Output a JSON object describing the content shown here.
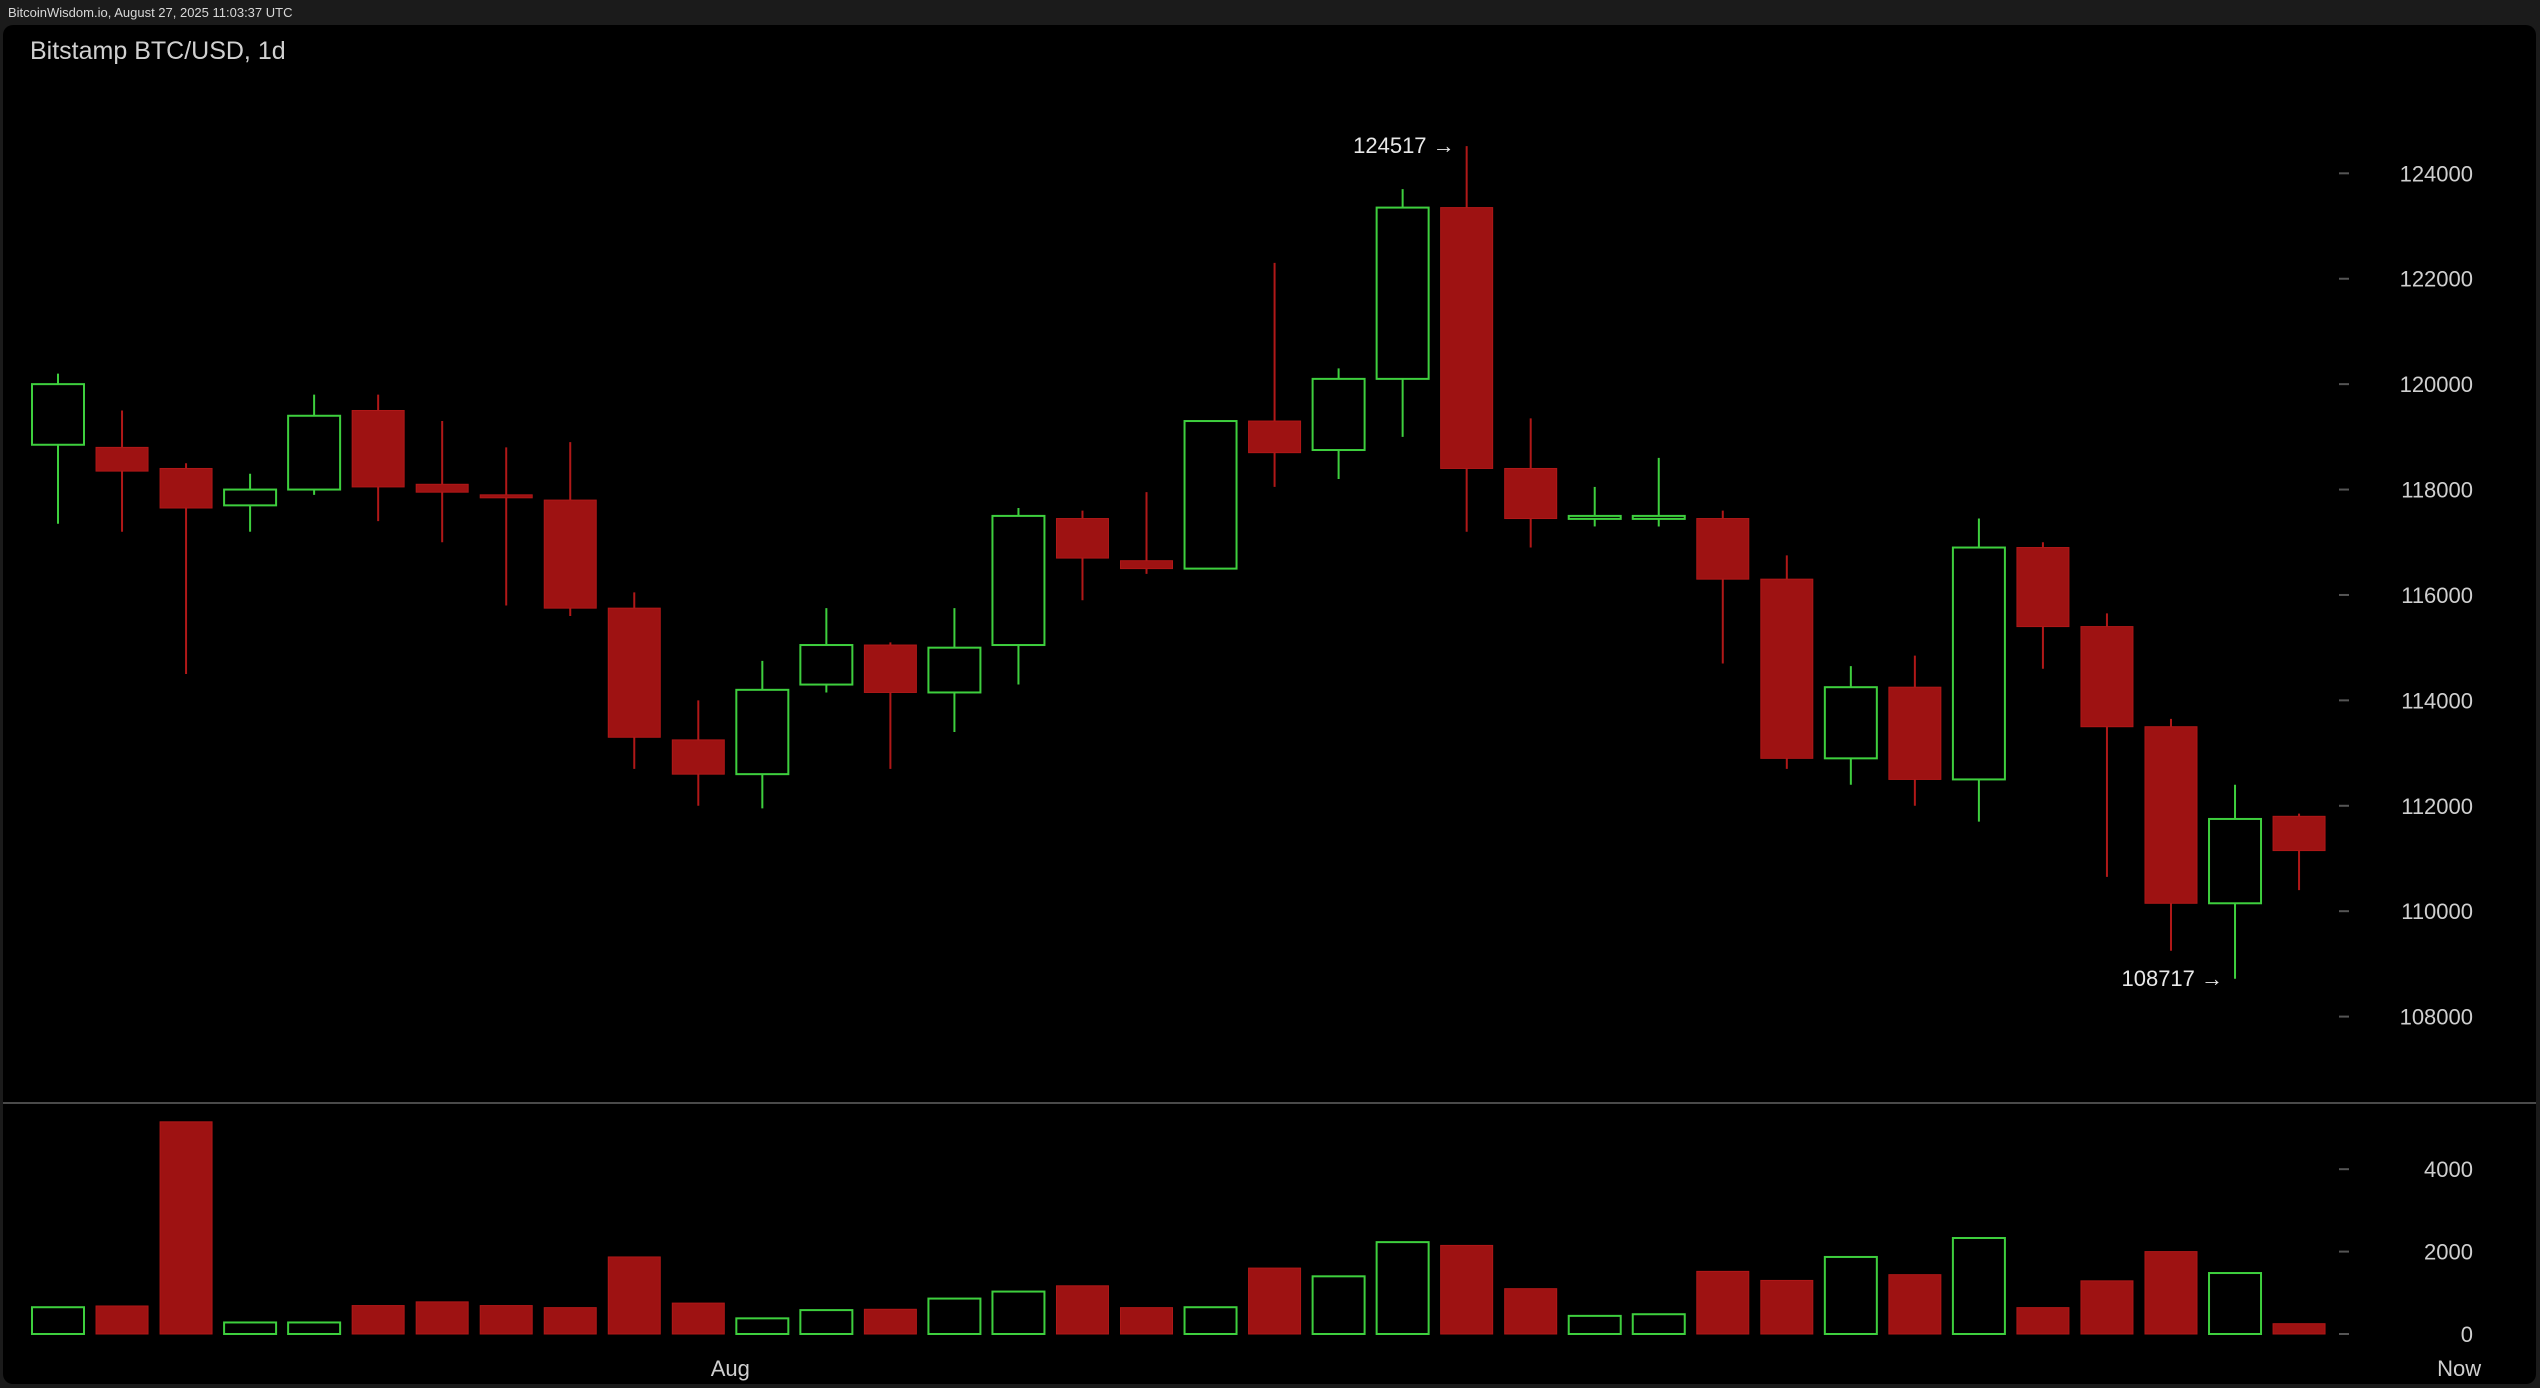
{
  "header": {
    "watermark": "BitcoinWisdom.io, August 27, 2025 11:03:37 UTC",
    "title": "Bitstamp BTC/USD, 1d"
  },
  "chart_data": {
    "type": "candlestick",
    "title": "Bitstamp BTC/USD, 1d",
    "exchange": "Bitstamp",
    "pair": "BTC/USD",
    "interval": "1d",
    "colors": {
      "up": "#3ecf3e",
      "down": "#9e1212",
      "background": "#000000",
      "text": "#cfcfcf",
      "grid_tick": "#555555"
    },
    "price_axis": {
      "ticks": [
        108000,
        110000,
        112000,
        114000,
        116000,
        118000,
        120000,
        122000,
        124000
      ],
      "tick_labels": [
        "108000",
        "110000",
        "112000",
        "114000",
        "116000",
        "118000",
        "120000",
        "122000",
        "124000"
      ],
      "range": [
        106000,
        125600
      ]
    },
    "volume_axis": {
      "ticks": [
        0,
        2000,
        4000
      ],
      "tick_labels": [
        "0",
        "2000",
        "4000"
      ],
      "range": [
        0,
        5600
      ]
    },
    "x_axis": {
      "labels": [
        {
          "text": "Aug",
          "index": 10.5
        },
        {
          "text": "Now",
          "index": 37.5
        }
      ]
    },
    "annotations": [
      {
        "text": "124517 →",
        "value": 124517,
        "candle_index": 22,
        "type": "high"
      },
      {
        "text": "108717 →",
        "value": 108717,
        "candle_index": 34,
        "type": "low"
      }
    ],
    "candles": [
      {
        "open": 118850,
        "high": 120200,
        "low": 117350,
        "close": 120000,
        "volume": 650
      },
      {
        "open": 118800,
        "high": 119500,
        "low": 117200,
        "close": 118350,
        "volume": 680
      },
      {
        "open": 118400,
        "high": 118500,
        "low": 114500,
        "close": 117650,
        "volume": 5150
      },
      {
        "open": 117700,
        "high": 118300,
        "low": 117200,
        "close": 118000,
        "volume": 280
      },
      {
        "open": 118000,
        "high": 119800,
        "low": 117900,
        "close": 119400,
        "volume": 280
      },
      {
        "open": 119500,
        "high": 119800,
        "low": 117400,
        "close": 118050,
        "volume": 690
      },
      {
        "open": 118100,
        "high": 119300,
        "low": 117000,
        "close": 117950,
        "volume": 780
      },
      {
        "open": 117900,
        "high": 118800,
        "low": 115800,
        "close": 117850,
        "volume": 690
      },
      {
        "open": 117800,
        "high": 118900,
        "low": 115600,
        "close": 115750,
        "volume": 640
      },
      {
        "open": 115750,
        "high": 116050,
        "low": 112700,
        "close": 113300,
        "volume": 1870
      },
      {
        "open": 113250,
        "high": 114000,
        "low": 112000,
        "close": 112600,
        "volume": 750
      },
      {
        "open": 112600,
        "high": 114750,
        "low": 111950,
        "close": 114200,
        "volume": 380
      },
      {
        "open": 114300,
        "high": 115750,
        "low": 114150,
        "close": 115050,
        "volume": 580
      },
      {
        "open": 115050,
        "high": 115100,
        "low": 112700,
        "close": 114150,
        "volume": 600
      },
      {
        "open": 114150,
        "high": 115750,
        "low": 113400,
        "close": 115000,
        "volume": 860
      },
      {
        "open": 115050,
        "high": 117650,
        "low": 114300,
        "close": 117500,
        "volume": 1030
      },
      {
        "open": 117450,
        "high": 117600,
        "low": 115900,
        "close": 116700,
        "volume": 1170
      },
      {
        "open": 116650,
        "high": 117950,
        "low": 116400,
        "close": 116500,
        "volume": 640
      },
      {
        "open": 116500,
        "high": 119300,
        "low": 116500,
        "close": 119300,
        "volume": 650
      },
      {
        "open": 119300,
        "high": 122300,
        "low": 118050,
        "close": 118700,
        "volume": 1600
      },
      {
        "open": 118750,
        "high": 120300,
        "low": 118200,
        "close": 120100,
        "volume": 1400
      },
      {
        "open": 120100,
        "high": 123700,
        "low": 119000,
        "close": 123350,
        "volume": 2230
      },
      {
        "open": 123350,
        "high": 124517,
        "low": 117200,
        "close": 118400,
        "volume": 2150
      },
      {
        "open": 118400,
        "high": 119350,
        "low": 116900,
        "close": 117450,
        "volume": 1100
      },
      {
        "open": 117450,
        "high": 118050,
        "low": 117300,
        "close": 117500,
        "volume": 440
      },
      {
        "open": 117450,
        "high": 118600,
        "low": 117300,
        "close": 117500,
        "volume": 480
      },
      {
        "open": 117450,
        "high": 117600,
        "low": 114700,
        "close": 116300,
        "volume": 1520
      },
      {
        "open": 116300,
        "high": 116750,
        "low": 112700,
        "close": 112900,
        "volume": 1300
      },
      {
        "open": 112900,
        "high": 114650,
        "low": 112400,
        "close": 114250,
        "volume": 1870
      },
      {
        "open": 114250,
        "high": 114850,
        "low": 112000,
        "close": 112500,
        "volume": 1440
      },
      {
        "open": 112500,
        "high": 117450,
        "low": 111700,
        "close": 116900,
        "volume": 2330
      },
      {
        "open": 116900,
        "high": 117000,
        "low": 114600,
        "close": 115400,
        "volume": 640
      },
      {
        "open": 115400,
        "high": 115650,
        "low": 110650,
        "close": 113500,
        "volume": 1290
      },
      {
        "open": 113500,
        "high": 113650,
        "low": 109250,
        "close": 110150,
        "volume": 2000
      },
      {
        "open": 110150,
        "high": 112400,
        "low": 108717,
        "close": 111750,
        "volume": 1480
      },
      {
        "open": 111800,
        "high": 111850,
        "low": 110400,
        "close": 111150,
        "volume": 250
      }
    ]
  }
}
